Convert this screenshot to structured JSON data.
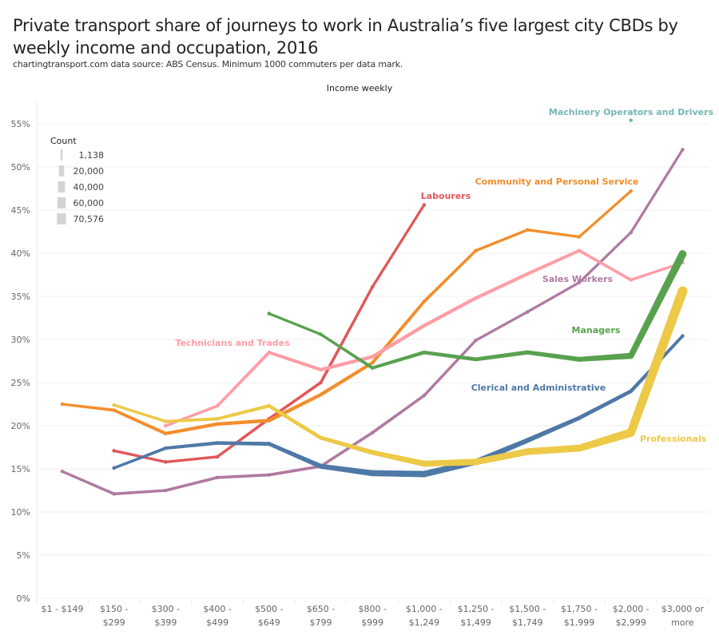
{
  "header": {
    "title": "Private transport share of journeys to work in Australia’s five largest city CBDs by weekly income and occupation, 2016",
    "subtitle": "chartingtransport.com  data source: ABS Census. Minimum 1000 commuters per data mark.",
    "axis_title": "Income weekly"
  },
  "chart_data": {
    "type": "line",
    "title": "Private transport share of journeys to work in Australia’s five largest city CBDs by weekly income and occupation, 2016",
    "xlabel": "Income weekly",
    "ylabel": "",
    "ylim": [
      0,
      57
    ],
    "yticks": [
      0,
      5,
      10,
      15,
      20,
      25,
      30,
      35,
      40,
      45,
      50,
      55
    ],
    "ytick_labels": [
      "0%",
      "5%",
      "10%",
      "15%",
      "20%",
      "25%",
      "30%",
      "35%",
      "40%",
      "45%",
      "50%",
      "55%"
    ],
    "grid": true,
    "categories": [
      [
        "$1 - $149"
      ],
      [
        "$150 -",
        "$299"
      ],
      [
        "$300 -",
        "$399"
      ],
      [
        "$400 -",
        "$499"
      ],
      [
        "$500 -",
        "$649"
      ],
      [
        "$650 -",
        "$799"
      ],
      [
        "$800 -",
        "$999"
      ],
      [
        "$1,000 -",
        "$1,249"
      ],
      [
        "$1,250 -",
        "$1,499"
      ],
      [
        "$1,500 -",
        "$1,749"
      ],
      [
        "$1,750 -",
        "$1,999"
      ],
      [
        "$2,000 -",
        "$2,999"
      ],
      [
        "$3,000 or",
        "more"
      ]
    ],
    "size_legend": {
      "title": "Count",
      "entries": [
        "1,138",
        "20,000",
        "40,000",
        "60,000",
        "70,576"
      ],
      "values": [
        1138,
        20000,
        40000,
        60000,
        70576
      ],
      "placement": "top-left"
    },
    "series": [
      {
        "name": "Machinery Operators and Drivers",
        "color": "#76b7b2",
        "values": [
          null,
          null,
          null,
          null,
          null,
          null,
          null,
          null,
          null,
          null,
          null,
          55.4,
          null
        ],
        "counts": [
          null,
          null,
          null,
          null,
          null,
          null,
          null,
          null,
          null,
          null,
          null,
          1200,
          null
        ],
        "label_anchor": 11
      },
      {
        "name": "Labourers",
        "color": "#e15759",
        "values": [
          null,
          17.1,
          15.8,
          16.4,
          20.8,
          25.0,
          36.1,
          45.6,
          null,
          null,
          null,
          null,
          null
        ],
        "counts": [
          null,
          1500,
          1500,
          1600,
          2000,
          2000,
          1500,
          1200,
          null,
          null,
          null,
          null,
          null
        ],
        "label_anchor": 7
      },
      {
        "name": "Community and Personal Service",
        "color": "#f28e2b",
        "values": [
          22.5,
          21.8,
          19.1,
          20.2,
          20.6,
          23.6,
          27.3,
          34.4,
          40.3,
          42.7,
          41.9,
          47.2,
          null
        ],
        "counts": [
          1200,
          2500,
          3500,
          4000,
          4500,
          4000,
          3500,
          2500,
          1800,
          1500,
          1300,
          1200,
          null
        ],
        "label_anchor": 11
      },
      {
        "name": "Sales Workers",
        "color": "#b07aa1",
        "values": [
          14.7,
          12.1,
          12.5,
          14.0,
          14.3,
          15.3,
          19.2,
          23.5,
          29.9,
          33.2,
          36.6,
          42.4,
          52.0
        ],
        "counts": [
          1500,
          2000,
          2000,
          2200,
          2200,
          2200,
          2000,
          1800,
          1500,
          1400,
          1300,
          1300,
          1200
        ],
        "label_anchor": 10
      },
      {
        "name": "Technicians and Trades",
        "color": "#ff9da7",
        "values": [
          null,
          null,
          20.0,
          22.3,
          28.5,
          26.5,
          28.0,
          31.6,
          34.8,
          37.6,
          40.3,
          36.9,
          38.9
        ],
        "counts": [
          null,
          null,
          1500,
          2000,
          3000,
          4000,
          4500,
          4500,
          4000,
          3500,
          2500,
          2000,
          1200
        ],
        "label_anchor": 4
      },
      {
        "name": "Managers",
        "color": "#59a14f",
        "values": [
          null,
          null,
          null,
          null,
          33.0,
          30.6,
          26.7,
          28.5,
          27.7,
          28.5,
          27.7,
          28.1,
          39.9
        ],
        "counts": [
          null,
          null,
          null,
          null,
          1200,
          1500,
          3000,
          5000,
          6000,
          8000,
          12000,
          22000,
          42000
        ],
        "label_anchor": 10
      },
      {
        "name": "Clerical and Administrative",
        "color": "#4e79a7",
        "values": [
          null,
          15.1,
          17.4,
          18.0,
          17.9,
          15.3,
          14.5,
          14.4,
          15.8,
          18.3,
          20.9,
          24.0,
          30.4
        ],
        "counts": [
          null,
          1500,
          3000,
          4500,
          6000,
          12000,
          22000,
          26000,
          20000,
          12000,
          7000,
          5000,
          2500
        ],
        "label_anchor": 10
      },
      {
        "name": "Professionals",
        "color": "#edc948",
        "values": [
          null,
          22.4,
          20.5,
          20.8,
          22.3,
          18.6,
          16.9,
          15.6,
          15.8,
          17.0,
          17.4,
          19.2,
          35.6
        ],
        "counts": [
          null,
          1500,
          2000,
          3000,
          4000,
          6000,
          12000,
          22000,
          26000,
          30000,
          32000,
          52000,
          70576
        ],
        "label_anchor": 12
      }
    ]
  }
}
